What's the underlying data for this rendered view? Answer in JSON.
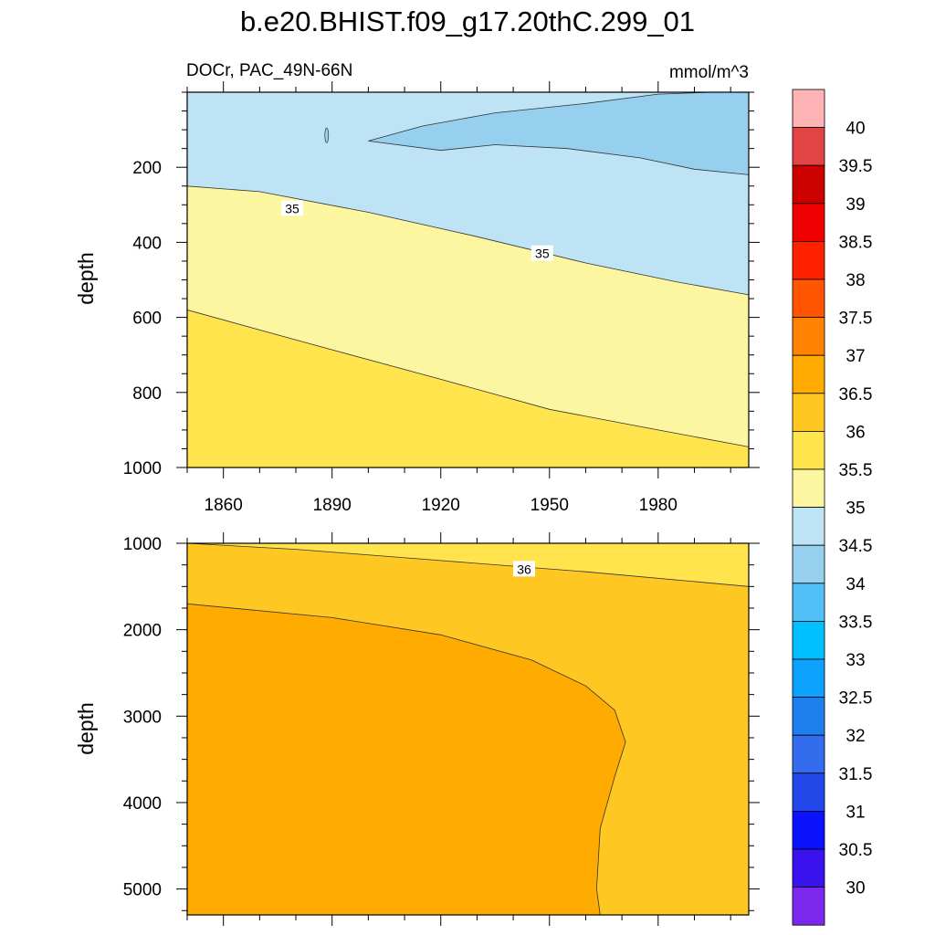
{
  "title": "b.e20.BHIST.f09_g17.20thC.299_01",
  "chart_data": {
    "type": "heatmap",
    "title": "b.e20.BHIST.f09_g17.20thC.299_01",
    "variable": "DOCr, PAC_49N-66N",
    "units": "mmol/m^3",
    "xlabel": "",
    "x_ticks": [
      "1860",
      "1890",
      "1920",
      "1950",
      "1980"
    ],
    "xlim": [
      1850,
      2005
    ],
    "panels": [
      {
        "ylabel": "depth",
        "ylim": [
          0,
          1000
        ],
        "y_reversed": true,
        "y_ticks": [
          "200",
          "400",
          "600",
          "800",
          "1000"
        ],
        "contour_labels": [
          {
            "text": "35",
            "x": 1879,
            "depth": 310
          },
          {
            "text": "35",
            "x": 1948,
            "depth": 430
          }
        ],
        "regions": [
          {
            "range": "34-34.5",
            "color": "#97d0ee"
          },
          {
            "range": "34.5-35",
            "color": "#bde3f5"
          },
          {
            "range": "35-35.5",
            "color": "#fdf6a0"
          },
          {
            "range": "35.5-36",
            "color": "#ffe44e"
          }
        ],
        "boundaries": [
          {
            "level": 35.5,
            "points": [
              [
                1850,
                580
              ],
              [
                1880,
                660
              ],
              [
                1920,
                765
              ],
              [
                1950,
                845
              ],
              [
                1980,
                900
              ],
              [
                2005,
                945
              ]
            ]
          },
          {
            "level": 35,
            "points": [
              [
                1850,
                250
              ],
              [
                1870,
                265
              ],
              [
                1900,
                320
              ],
              [
                1930,
                385
              ],
              [
                1960,
                455
              ],
              [
                1985,
                505
              ],
              [
                2005,
                540
              ]
            ]
          },
          {
            "level": 34.5,
            "points": [
              [
                1900,
                130
              ],
              [
                1915,
                90
              ],
              [
                1935,
                55
              ],
              [
                1960,
                30
              ],
              [
                1980,
                5
              ],
              [
                1995,
                0
              ],
              [
                2005,
                0
              ],
              [
                2005,
                220
              ],
              [
                1990,
                205
              ],
              [
                1975,
                175
              ],
              [
                1955,
                150
              ],
              [
                1935,
                140
              ],
              [
                1920,
                155
              ],
              [
                1900,
                130
              ]
            ]
          }
        ]
      },
      {
        "ylabel": "depth",
        "ylim": [
          1000,
          5300
        ],
        "y_reversed": true,
        "y_ticks": [
          "1000",
          "2000",
          "3000",
          "4000",
          "5000"
        ],
        "contour_labels": [
          {
            "text": "36",
            "x": 1943,
            "depth": 1300
          }
        ],
        "regions": [
          {
            "range": "35.5-36",
            "color": "#ffe44e"
          },
          {
            "range": "36-36.5",
            "color": "#fec722"
          },
          {
            "range": "36.5-37",
            "color": "#ffab00"
          }
        ],
        "boundaries": [
          {
            "level": 36,
            "points": [
              [
                1850,
                1000
              ],
              [
                1880,
                1070
              ],
              [
                1920,
                1200
              ],
              [
                1960,
                1330
              ],
              [
                2005,
                1500
              ]
            ]
          },
          {
            "level": 36.5,
            "points": [
              [
                1850,
                1700
              ],
              [
                1890,
                1860
              ],
              [
                1920,
                2060
              ],
              [
                1945,
                2350
              ],
              [
                1960,
                2650
              ],
              [
                1968,
                2930
              ],
              [
                1971,
                3300
              ],
              [
                1968,
                3700
              ],
              [
                1964,
                4300
              ],
              [
                1963,
                5000
              ],
              [
                1964,
                5300
              ]
            ]
          }
        ]
      }
    ],
    "colorbar": {
      "labels": [
        "40",
        "39.5",
        "39",
        "38.5",
        "38",
        "37.5",
        "37",
        "36.5",
        "36",
        "35.5",
        "35",
        "34.5",
        "34",
        "33.5",
        "33",
        "32.5",
        "32",
        "31.5",
        "31",
        "30.5",
        "30"
      ],
      "colors": [
        "#feb3b4",
        "#e24444",
        "#cd0000",
        "#f00000",
        "#ff2000",
        "#ff5500",
        "#ff8200",
        "#ffab00",
        "#fec722",
        "#ffe44e",
        "#fdf6a0",
        "#bde3f5",
        "#97d0ee",
        "#50c0f6",
        "#00c0ff",
        "#0ea2ff",
        "#1e7fee",
        "#346cee",
        "#2348ea",
        "#0b13fe",
        "#3a12ee",
        "#7c27ed"
      ]
    }
  }
}
